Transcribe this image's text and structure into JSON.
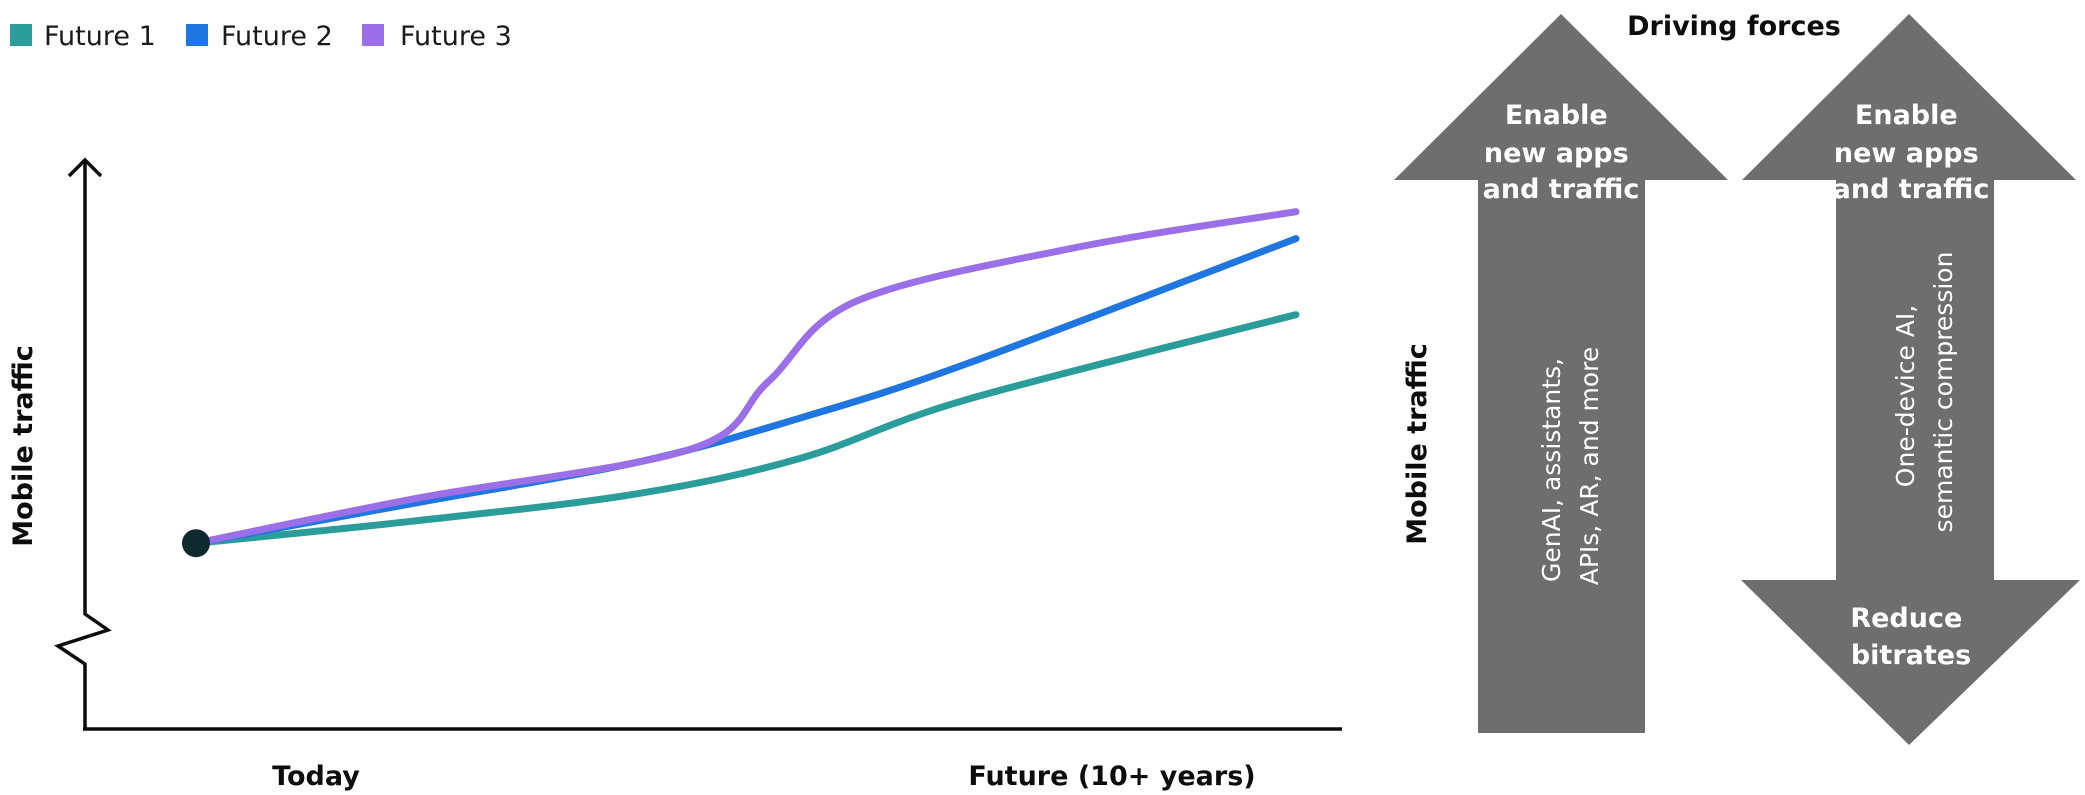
{
  "chart_data": {
    "type": "line",
    "title": "",
    "xlabel": "",
    "ylabel": "Mobile traffic",
    "x_axis_labels": [
      "Today",
      "Future (10+ years)"
    ],
    "xlim": [
      0,
      10
    ],
    "ylim": [
      0,
      10
    ],
    "grid": false,
    "legend_position": "top-left",
    "start_point": {
      "x": 0,
      "y": 1
    },
    "series": [
      {
        "name": "Future 1",
        "color": "#2a9d9a",
        "points": [
          [
            0,
            1
          ],
          [
            2,
            1.5
          ],
          [
            4,
            2.1
          ],
          [
            5.5,
            2.9
          ],
          [
            7,
            4.2
          ],
          [
            10,
            6.1
          ]
        ]
      },
      {
        "name": "Future 2",
        "color": "#1f76e0",
        "points": [
          [
            0,
            1
          ],
          [
            2,
            1.9
          ],
          [
            4,
            2.8
          ],
          [
            5.5,
            3.8
          ],
          [
            7,
            5.0
          ],
          [
            10,
            7.8
          ]
        ]
      },
      {
        "name": "Future 3",
        "color": "#9b6fe8",
        "points": [
          [
            0,
            1
          ],
          [
            2,
            2.0
          ],
          [
            4.5,
            3.1
          ],
          [
            5.2,
            4.6
          ],
          [
            6,
            6.4
          ],
          [
            8,
            7.6
          ],
          [
            10,
            8.4
          ]
        ]
      }
    ]
  },
  "driving_forces": {
    "title": "Driving forces",
    "axis_label": "Mobile traffic",
    "arrow_color": "#6e6e6e",
    "up_arrow": {
      "head_lines": [
        "Enable",
        "new apps",
        "and traffic"
      ],
      "body_lines": [
        "GenAI, assistants,",
        "APIs, AR, and more"
      ]
    },
    "double_arrow": {
      "top_lines": [
        "Enable",
        "new apps",
        "and traffic"
      ],
      "body_lines": [
        "One-device AI,",
        "semantic compression"
      ],
      "bottom_lines": [
        "Reduce",
        "bitrates"
      ]
    }
  }
}
